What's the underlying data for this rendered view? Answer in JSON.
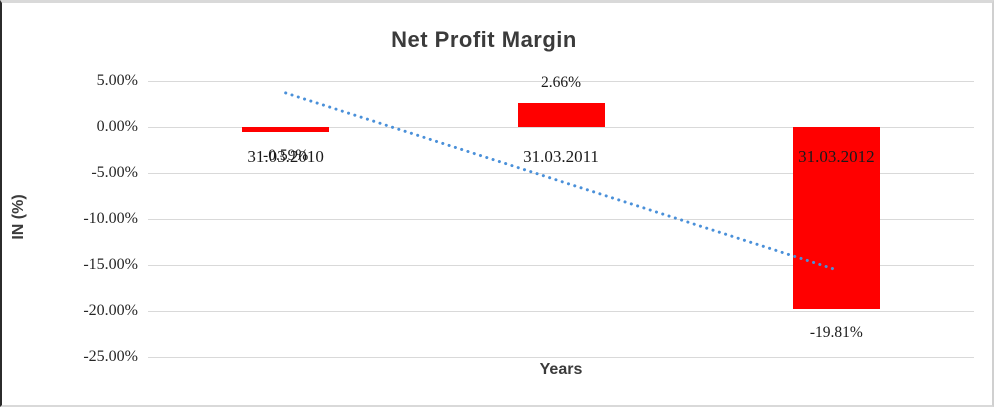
{
  "chart_data": {
    "type": "bar",
    "title": "Net Profit Margin",
    "xlabel": "Years",
    "ylabel": "IN (%)",
    "categories": [
      "31.03.2010",
      "31.03.2011",
      "31.03.2012"
    ],
    "values": [
      -0.59,
      2.66,
      -19.81
    ],
    "data_labels": [
      "-0.59%",
      "2.66%",
      "-19.81%"
    ],
    "y_ticks": [
      {
        "label": "5.00%",
        "value": 5
      },
      {
        "label": "0.00%",
        "value": 0
      },
      {
        "label": "-5.00%",
        "value": -5
      },
      {
        "label": "-10.00%",
        "value": -10
      },
      {
        "label": "-15.00%",
        "value": -15
      },
      {
        "label": "-20.00%",
        "value": -20
      },
      {
        "label": "-25.00%",
        "value": -25
      }
    ],
    "ylim": [
      -25,
      5
    ],
    "grid": true,
    "legend": false,
    "bar_color": "#ff0000",
    "gridline_color": "#d9d9d9",
    "trendline": {
      "style": "dotted",
      "color": "#4a90d9",
      "start_category_index": 0,
      "start_value": 3.7,
      "end_category_index": 2,
      "end_value": -15.52
    }
  }
}
